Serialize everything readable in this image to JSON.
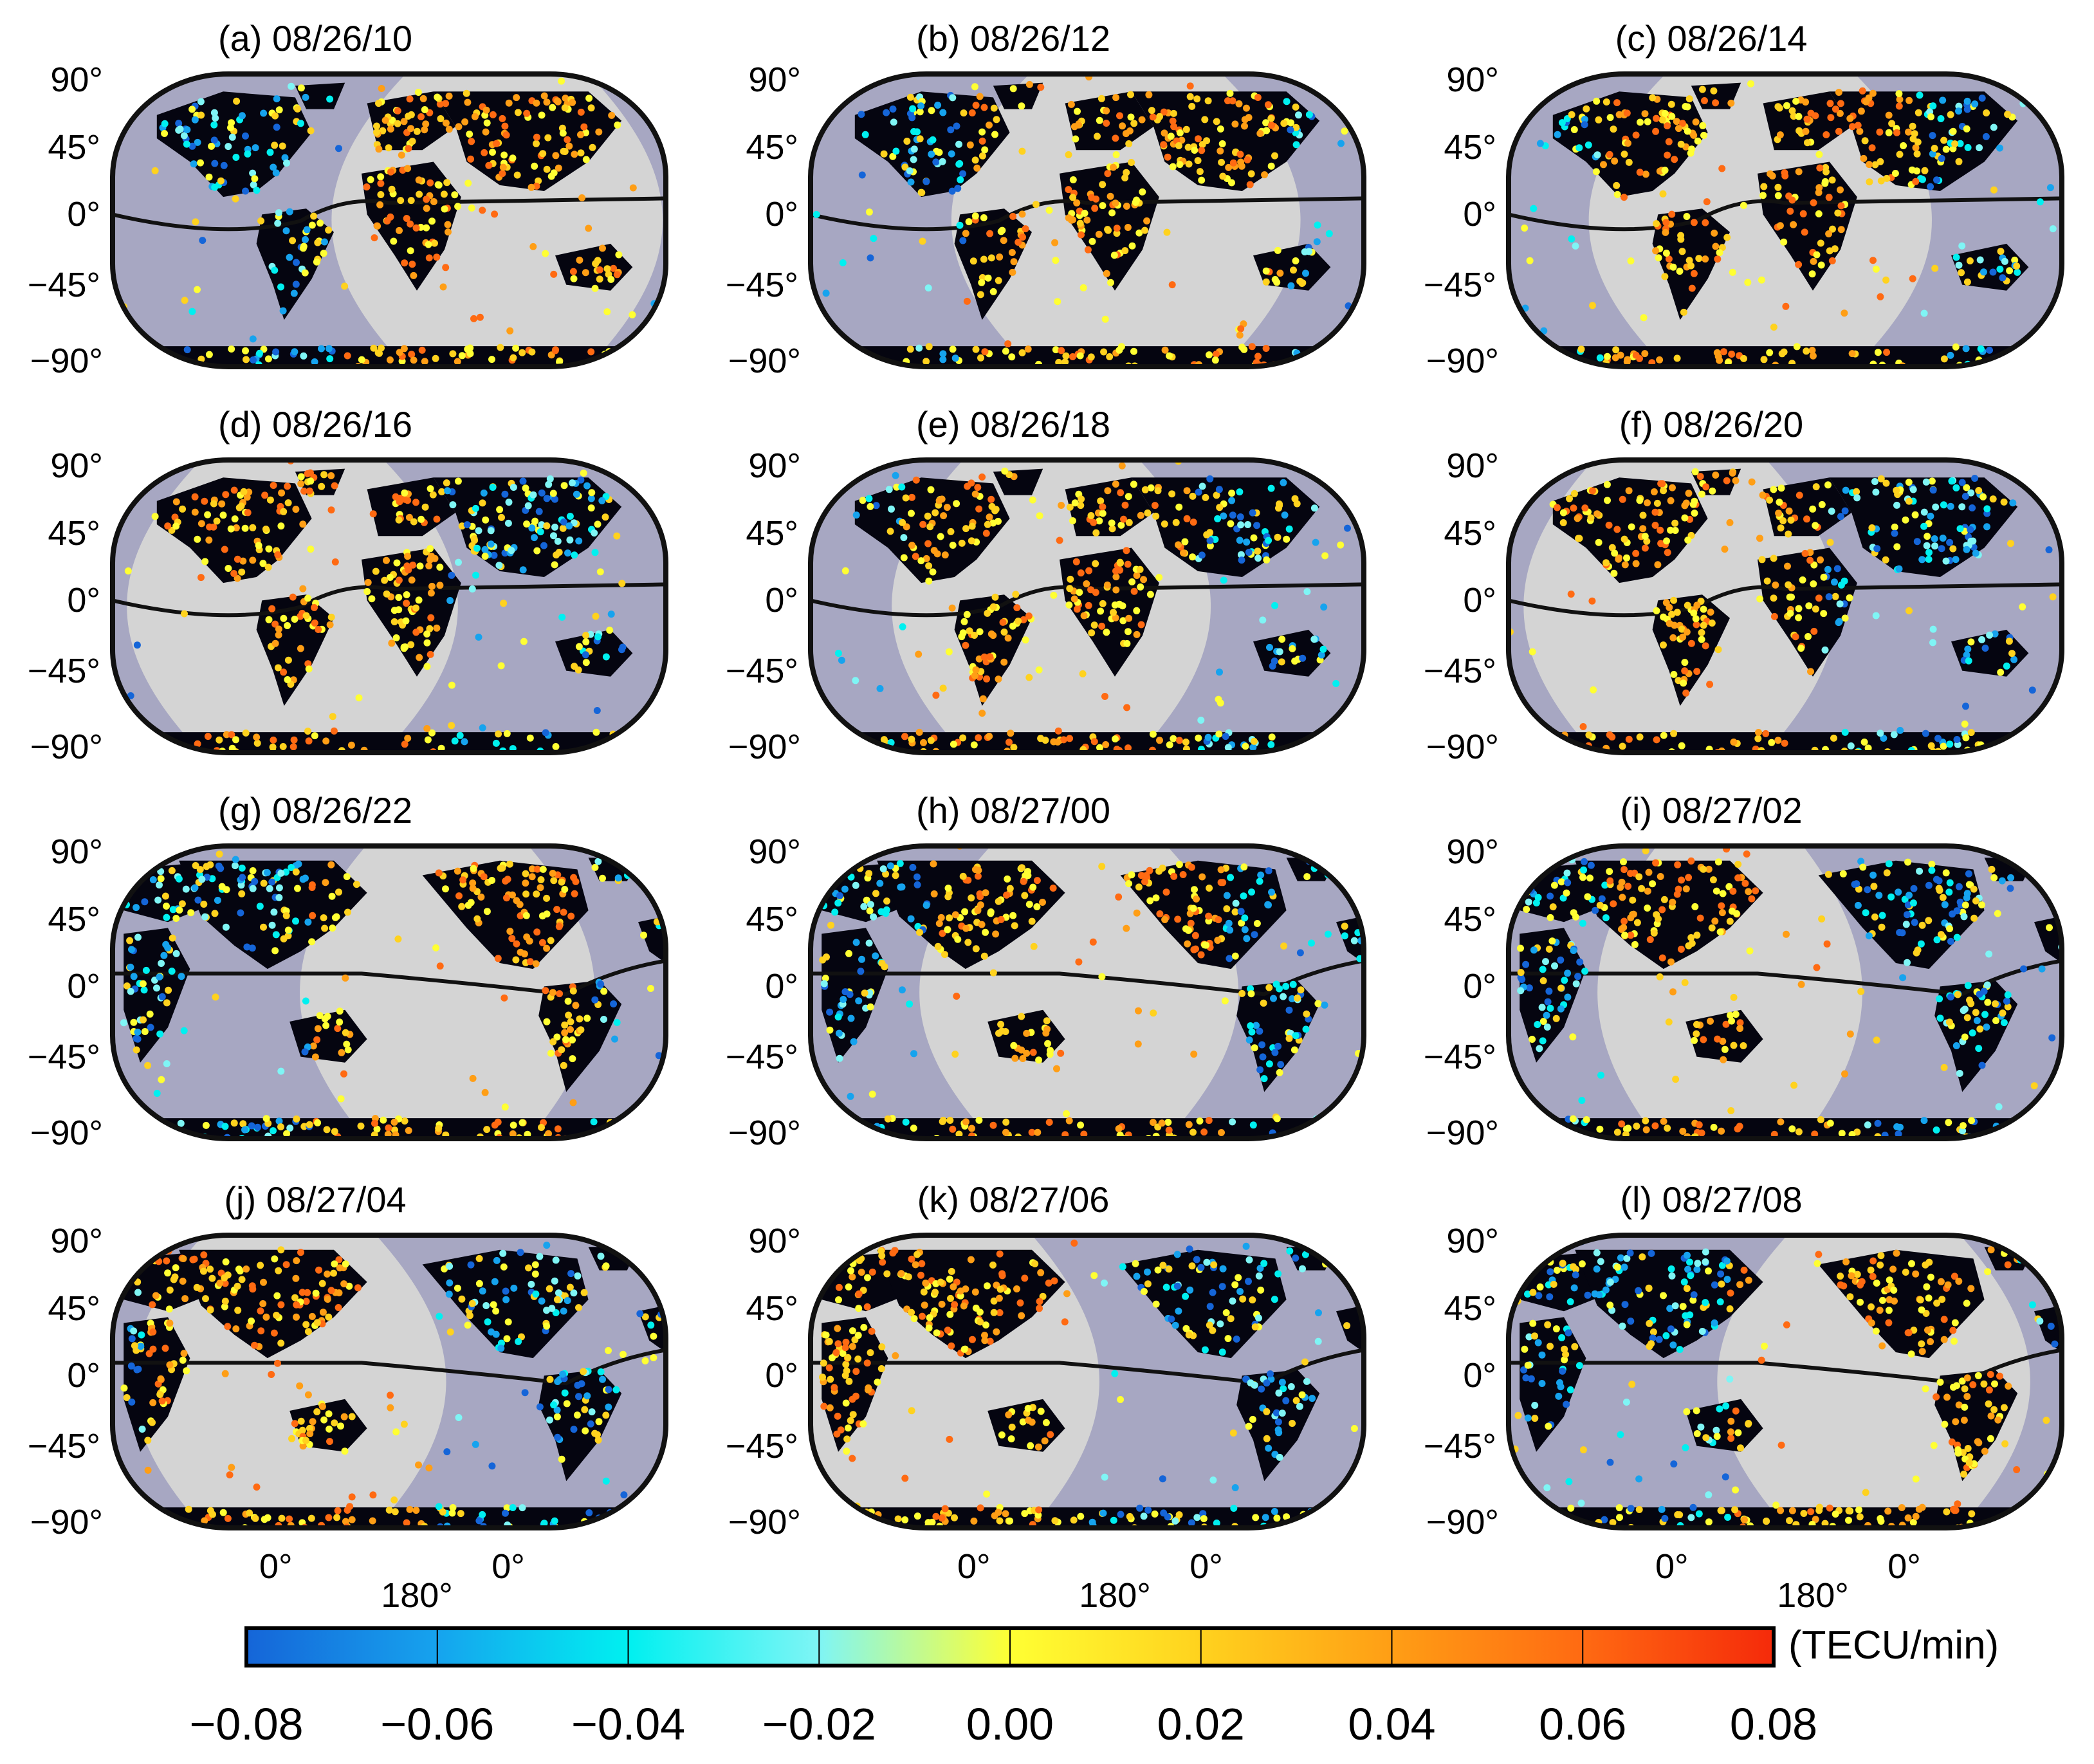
{
  "figure": {
    "panels": [
      {
        "title": "(a) 08/26/10",
        "center_meridian": "atlantic",
        "night_start": 0.42,
        "night_end": 0.97,
        "show_lon_labels": false
      },
      {
        "title": "(b) 08/26/12",
        "center_meridian": "atlantic",
        "night_start": 0.28,
        "night_end": 0.86,
        "show_lon_labels": false
      },
      {
        "title": "(c) 08/26/14",
        "center_meridian": "atlantic",
        "night_start": 0.17,
        "night_end": 0.74,
        "show_lon_labels": false
      },
      {
        "title": "(d) 08/26/16",
        "center_meridian": "atlantic",
        "night_start": 0.05,
        "night_end": 0.6,
        "show_lon_labels": false
      },
      {
        "title": "(e) 08/26/18",
        "center_meridian": "atlantic",
        "night_start": 0.17,
        "night_end": 0.7,
        "show_lon_labels": false
      },
      {
        "title": "(f) 08/26/20",
        "center_meridian": "atlantic",
        "night_start": 0.05,
        "night_end": 0.57,
        "show_lon_labels": false
      },
      {
        "title": "(g) 08/26/22",
        "center_meridian": "pacific",
        "night_start": 0.36,
        "night_end": 0.85,
        "show_lon_labels": false
      },
      {
        "title": "(h) 08/27/00",
        "center_meridian": "pacific",
        "night_start": 0.22,
        "night_end": 0.75,
        "show_lon_labels": false
      },
      {
        "title": "(i) 08/27/02",
        "center_meridian": "pacific",
        "night_start": 0.18,
        "night_end": 0.62,
        "show_lon_labels": false
      },
      {
        "title": "(j) 08/27/04",
        "center_meridian": "pacific",
        "night_start": 0.06,
        "night_end": 0.58,
        "show_lon_labels": true
      },
      {
        "title": "(k) 08/27/06",
        "center_meridian": "pacific",
        "night_start": 0.0,
        "night_end": 0.5,
        "show_lon_labels": true
      },
      {
        "title": "(l) 08/27/08",
        "center_meridian": "pacific",
        "night_start": 0.4,
        "night_end": 0.92,
        "show_lon_labels": true
      }
    ],
    "lat_labels": [
      "90°",
      "45°",
      "0°",
      "-45°",
      "-90°"
    ],
    "lat_labels_display": [
      "90°",
      "45°",
      "0°",
      "−45°",
      "−90°"
    ],
    "lon_labels": [
      "0°",
      "180°",
      "0°"
    ]
  },
  "colors": {
    "day": "#d4d4d4",
    "night": "#a7a7c2",
    "land": "#050510",
    "frame": "#111111",
    "equator": "#111111"
  },
  "colorbar": {
    "unit": "(TECU/min)",
    "ticks": [
      "−0.08",
      "−0.06",
      "−0.04",
      "−0.02",
      "0.00",
      "0.02",
      "0.04",
      "0.06",
      "0.08"
    ],
    "range": [
      -0.08,
      0.08
    ],
    "gradient": [
      "#1565d8",
      "#16a3ee",
      "#00f0f0",
      "#7ff5f5",
      "#ffff33",
      "#ffd21e",
      "#ff9e15",
      "#ff6a12",
      "#f52a0a"
    ]
  }
}
